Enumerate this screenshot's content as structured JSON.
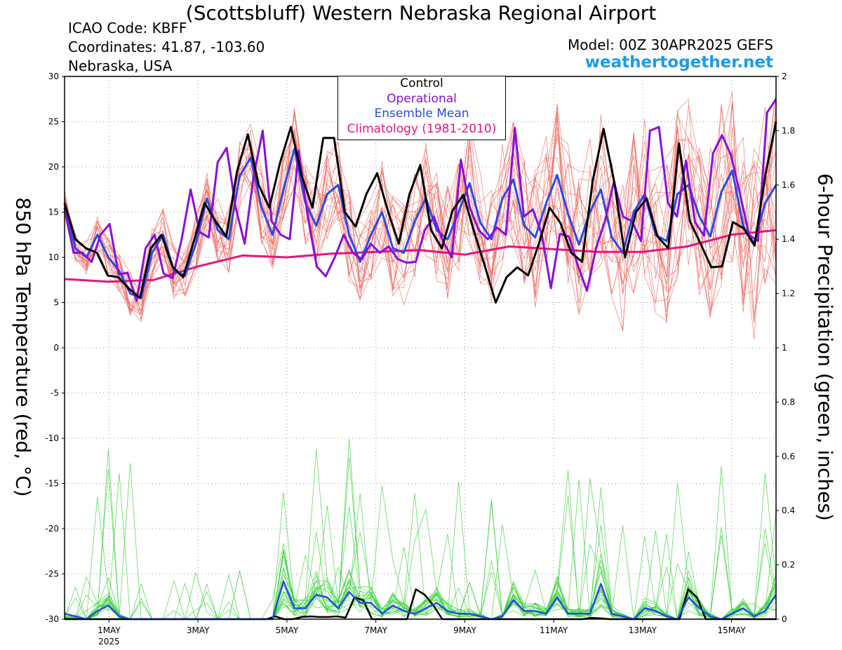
{
  "header": {
    "title": "(Scottsbluff) Western Nebraska Regional Airport",
    "icao": "ICAO Code: KBFF",
    "coordinates": "Coordinates: 41.87, -103.60",
    "region": "Nebraska, USA",
    "model": "Model: 00Z 30APR2025 GEFS",
    "site": "weathertogether.net"
  },
  "chart_data": {
    "type": "line",
    "ylabel": "850 hPa Temperature (red, °C)",
    "y2label": "6-hour Precipitation (green, inches)",
    "ylim": [
      -30,
      30
    ],
    "y2lim": [
      0,
      2
    ],
    "yticks": [
      "30",
      "25",
      "20",
      "15",
      "10",
      "5",
      "0",
      "-5",
      "-10",
      "-15",
      "-20",
      "-25",
      "-30"
    ],
    "y2ticks": [
      "2",
      "1.8",
      "1.6",
      "1.4",
      "1.2",
      "1",
      "0.8",
      "0.6",
      "0.4",
      "0.2",
      "0"
    ],
    "xlim": [
      0,
      64
    ],
    "xticks": [
      {
        "x": 4,
        "label": "1MAY",
        "sub": "2025"
      },
      {
        "x": 12,
        "label": "3MAY",
        "sub": ""
      },
      {
        "x": 20,
        "label": "5MAY",
        "sub": ""
      },
      {
        "x": 28,
        "label": "7MAY",
        "sub": ""
      },
      {
        "x": 36,
        "label": "9MAY",
        "sub": ""
      },
      {
        "x": 44,
        "label": "11MAY",
        "sub": ""
      },
      {
        "x": 52,
        "label": "13MAY",
        "sub": ""
      },
      {
        "x": 60,
        "label": "15MAY",
        "sub": ""
      }
    ],
    "grid": true,
    "legend_position": "top-center",
    "legend": [
      {
        "label": "Control",
        "color": "#000000"
      },
      {
        "label": "Operational",
        "color": "#8a10d8"
      },
      {
        "label": "Ensemble Mean",
        "color": "#2a4ae8"
      },
      {
        "label": "Climatology (1981-2010)",
        "color": "#e8157a"
      }
    ],
    "colors": {
      "members_temp": "#f06a60",
      "members_precip": "#3ad43a"
    },
    "series": [
      {
        "name": "Control",
        "axis": "temp",
        "color": "#000000",
        "values": [
          16,
          12,
          11,
          10.5,
          8,
          7.8,
          6.5,
          5.5,
          11,
          12.5,
          9,
          7.8,
          11.8,
          16,
          14,
          12.3,
          19.5,
          23.6,
          18,
          15.5,
          20.5,
          24.4,
          19,
          15.5,
          23.2,
          23.2,
          15,
          13.4,
          17,
          19.3,
          15.1,
          11.5,
          17,
          20.2,
          13,
          11,
          15.2,
          16.9,
          12.8,
          9,
          5,
          7.8,
          8.9,
          8,
          11.5,
          15.5,
          13.8,
          10.5,
          9.5,
          18.5,
          24.2,
          18.3,
          10,
          15,
          16.5,
          12.3,
          11,
          22.6,
          14,
          11.5,
          8.9,
          9,
          13.9,
          13.2,
          11.3,
          19,
          25
        ]
      },
      {
        "name": "Operational",
        "axis": "temp",
        "color": "#8a10d8",
        "values": [
          15.5,
          10.5,
          10.5,
          9.5,
          12.5,
          13.7,
          8.1,
          8.3,
          5.2,
          11,
          12.5,
          8.2,
          7.7,
          12,
          17.5,
          12.8,
          12.2,
          20.5,
          22.1,
          15.5,
          11.5,
          19,
          24,
          14,
          12.5,
          12,
          21.8,
          14.5,
          9,
          7.9,
          10,
          12.5,
          10.5,
          9.8,
          11.5,
          10.5,
          11.2,
          9.8,
          9.4,
          9.5,
          13,
          14.5,
          11.8,
          10,
          20.8,
          15.5,
          13,
          12,
          13.3,
          12.5,
          24.3,
          14.5,
          15.3,
          12.5,
          6.6,
          12.6,
          12.3,
          9.1,
          6.3,
          11,
          14,
          18.4,
          14.5,
          14,
          11.8,
          24,
          24.4,
          16,
          14.5,
          20.7,
          13.9,
          12.4,
          21.5,
          23.5,
          21.3,
          17,
          12.5,
          11.8,
          26,
          27.5
        ]
      },
      {
        "name": "Ensemble Mean",
        "axis": "temp",
        "color": "#2a4ae8",
        "values": [
          16,
          11,
          10,
          12.5,
          10,
          8.5,
          6,
          5.5,
          10.5,
          12.5,
          8.5,
          8,
          11.5,
          16.5,
          13,
          12,
          19,
          21,
          15.5,
          12.5,
          17.5,
          22,
          16,
          13.5,
          17,
          18,
          12.5,
          9.5,
          12.5,
          15,
          11,
          10.5,
          14,
          16.5,
          13,
          12,
          15,
          18.2,
          13.8,
          12,
          16.5,
          18.6,
          13.5,
          12.2,
          16,
          19.1,
          14.8,
          11.4,
          15,
          17.5,
          12.2,
          10.5,
          15,
          17,
          12.5,
          11.8,
          17,
          18,
          14.5,
          12.3,
          17.2,
          19.6,
          13.5,
          11.5,
          16,
          18
        ]
      },
      {
        "name": "Climatology (1981-2010)",
        "axis": "temp",
        "color": "#e8157a",
        "width": 3,
        "x": [
          0,
          4,
          8,
          12,
          16,
          20,
          24,
          28,
          32,
          36,
          40,
          44,
          48,
          52,
          56,
          60,
          64
        ],
        "values": [
          7.6,
          7.3,
          7.5,
          9.0,
          10.2,
          10.0,
          10.4,
          10.6,
          10.8,
          10.3,
          11.2,
          10.9,
          10.6,
          10.6,
          11.2,
          12.5,
          13.0
        ]
      },
      {
        "name": "Control",
        "axis": "precip",
        "color": "#000000",
        "values": [
          0,
          0,
          0,
          0,
          0,
          0,
          0,
          0,
          0,
          0,
          0,
          0,
          0,
          0,
          0,
          0,
          0,
          0,
          0,
          0,
          0,
          0,
          0,
          0,
          0.01,
          0,
          0,
          0.008,
          0.01,
          0.008,
          0.008,
          0.01,
          0.006,
          0.08,
          0.07,
          0,
          0,
          0,
          0,
          0,
          0.11,
          0.09,
          0.05,
          0,
          0,
          0,
          0,
          0,
          0,
          0,
          0,
          0,
          0,
          0,
          0,
          0,
          0,
          0,
          0,
          0,
          0.005,
          0.003,
          0,
          0,
          0,
          0,
          0,
          0,
          0,
          0,
          0,
          0.11,
          0.08,
          0,
          0,
          0,
          0,
          0,
          0,
          0,
          0,
          0
        ]
      },
      {
        "name": "Ensemble Mean",
        "axis": "precip",
        "color": "#2a4ae8",
        "values": [
          0.02,
          0.01,
          0,
          0.03,
          0.05,
          0.01,
          0,
          0,
          0,
          0,
          0,
          0,
          0,
          0,
          0,
          0,
          0,
          0,
          0,
          0,
          0.14,
          0.04,
          0.04,
          0.09,
          0.08,
          0.04,
          0.1,
          0.06,
          0.06,
          0.02,
          0.05,
          0.03,
          0.02,
          0.04,
          0.06,
          0.03,
          0.02,
          0.02,
          0.01,
          0,
          0.01,
          0.07,
          0.03,
          0.03,
          0.02,
          0.08,
          0.02,
          0.02,
          0.02,
          0.13,
          0.02,
          0.01,
          0,
          0.04,
          0.03,
          0.01,
          0,
          0.08,
          0.04,
          0.01,
          0,
          0.02,
          0.04,
          0.01,
          0.03,
          0.09
        ]
      }
    ]
  }
}
